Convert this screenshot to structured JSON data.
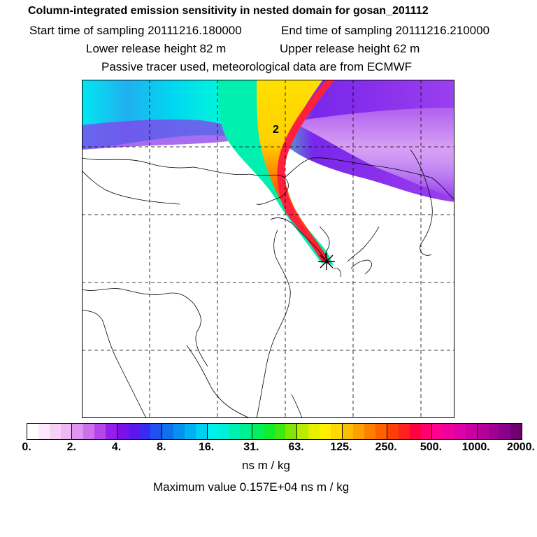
{
  "header": {
    "title": "Column-integrated emission sensitivity in nested domain for gosan_201112",
    "start_time": "Start time of sampling 20111216.180000",
    "end_time": "End time of sampling 20111216.210000",
    "lower_release": "Lower release height   82 m",
    "upper_release": "Upper release height   62 m",
    "tracer_info": "Passive tracer used, meteorological data are from ECMWF"
  },
  "map": {
    "label_day": "2",
    "receptor_marker": "*"
  },
  "colorbar": {
    "tick_labels": [
      "0.",
      "2.",
      "4.",
      "8.",
      "16.",
      "31.",
      "63.",
      "125.",
      "250.",
      "500.",
      "1000.",
      "2000."
    ],
    "colors": [
      "#ffffff",
      "#fde8fd",
      "#f6d0f6",
      "#eeb8f4",
      "#e096f0",
      "#cc70ec",
      "#b546ea",
      "#9a1cea",
      "#7c10ea",
      "#5a18ec",
      "#3a2cee",
      "#2050f0",
      "#1070f0",
      "#0890f0",
      "#00b0f0",
      "#00d0f0",
      "#00f0f0",
      "#00f0d8",
      "#00f0b0",
      "#00f090",
      "#00f060",
      "#10ec30",
      "#40e810",
      "#80e800",
      "#b8ec00",
      "#e8f000",
      "#fff000",
      "#ffd800",
      "#ffbc00",
      "#ffa000",
      "#ff8000",
      "#ff6000",
      "#ff4000",
      "#ff2020",
      "#ff0040",
      "#ff0070",
      "#ff0090",
      "#f000a0",
      "#e000a8",
      "#c800a4",
      "#b40098",
      "#a00090",
      "#8a0088",
      "#700070"
    ],
    "units": "ns m / kg",
    "max_value": "Maximum value  0.157E+04 ns m / kg"
  }
}
